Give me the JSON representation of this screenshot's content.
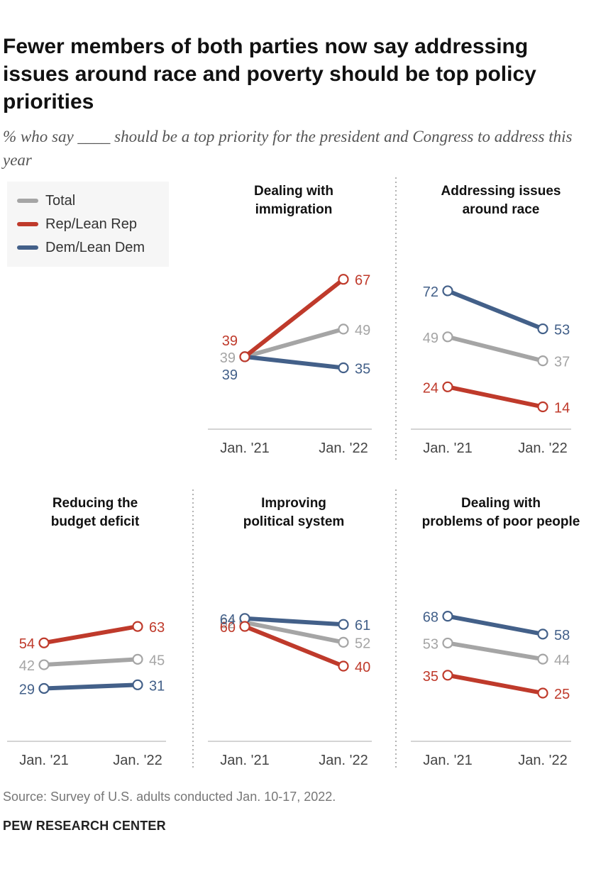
{
  "title": "Fewer members of both parties now say addressing issues around race and poverty should be top policy priorities",
  "subtitle": "% who say ____ should be a top priority for the president and Congress to address this year",
  "source": "Source: Survey of U.S. adults conducted Jan. 10-17, 2022.",
  "brand": "PEW RESEARCH CENTER",
  "colors": {
    "total": "#a5a5a5",
    "rep": "#bf3a2b",
    "dem": "#436089"
  },
  "legend": [
    {
      "key": "total",
      "label": "Total"
    },
    {
      "key": "rep",
      "label": "Rep/Lean Rep"
    },
    {
      "key": "dem",
      "label": "Dem/Lean Dem"
    }
  ],
  "chart_data": [
    {
      "type": "line",
      "title": [
        "Dealing with",
        "immigration"
      ],
      "categories": [
        "Jan. '21",
        "Jan. '22"
      ],
      "series": [
        {
          "name": "Total",
          "key": "total",
          "values": [
            39,
            49
          ]
        },
        {
          "name": "Rep/Lean Rep",
          "key": "rep",
          "values": [
            39,
            67
          ]
        },
        {
          "name": "Dem/Lean Dem",
          "key": "dem",
          "values": [
            39,
            35
          ]
        }
      ]
    },
    {
      "type": "line",
      "title": [
        "Addressing issues",
        "around race"
      ],
      "categories": [
        "Jan. '21",
        "Jan. '22"
      ],
      "series": [
        {
          "name": "Total",
          "key": "total",
          "values": [
            49,
            37
          ]
        },
        {
          "name": "Rep/Lean Rep",
          "key": "rep",
          "values": [
            24,
            14
          ]
        },
        {
          "name": "Dem/Lean Dem",
          "key": "dem",
          "values": [
            72,
            53
          ]
        }
      ]
    },
    {
      "type": "line",
      "title": [
        "Reducing the",
        "budget deficit"
      ],
      "categories": [
        "Jan. '21",
        "Jan. '22"
      ],
      "series": [
        {
          "name": "Total",
          "key": "total",
          "values": [
            42,
            45
          ]
        },
        {
          "name": "Rep/Lean Rep",
          "key": "rep",
          "values": [
            54,
            63
          ]
        },
        {
          "name": "Dem/Lean Dem",
          "key": "dem",
          "values": [
            29,
            31
          ]
        }
      ]
    },
    {
      "type": "line",
      "title": [
        "Improving",
        "political system"
      ],
      "categories": [
        "Jan. '21",
        "Jan. '22"
      ],
      "series": [
        {
          "name": "Total",
          "key": "total",
          "values": [
            62,
            52
          ]
        },
        {
          "name": "Rep/Lean Rep",
          "key": "rep",
          "values": [
            60,
            40
          ]
        },
        {
          "name": "Dem/Lean Dem",
          "key": "dem",
          "values": [
            64,
            61
          ]
        }
      ]
    },
    {
      "type": "line",
      "title": [
        "Dealing with",
        "problems of poor people"
      ],
      "categories": [
        "Jan. '21",
        "Jan. '22"
      ],
      "series": [
        {
          "name": "Total",
          "key": "total",
          "values": [
            53,
            44
          ]
        },
        {
          "name": "Rep/Lean Rep",
          "key": "rep",
          "values": [
            35,
            25
          ]
        },
        {
          "name": "Dem/Lean Dem",
          "key": "dem",
          "values": [
            68,
            58
          ]
        }
      ]
    }
  ]
}
